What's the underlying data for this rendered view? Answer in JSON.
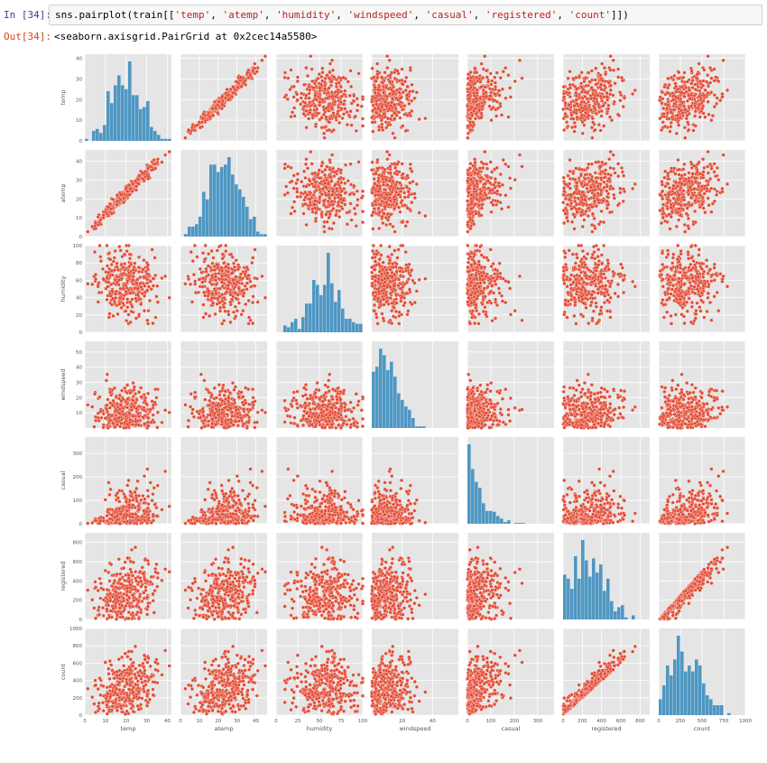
{
  "cell": {
    "in_prompt": "In [34]:",
    "out_prompt": "Out[34]:",
    "code_prefix": "sns.pairplot(train[[",
    "code_suffix": "]])",
    "output_text": "<seaborn.axisgrid.PairGrid at 0x2cec14a5580>"
  },
  "colors": {
    "scatter": "#e24a33",
    "hist": "#348abd",
    "panel_bg": "#e5e5e5",
    "grid": "#ffffff",
    "tick_text": "#555555"
  },
  "chart_data": {
    "type": "scatter",
    "style": "ggplot pairplot",
    "variables": [
      "temp",
      "atemp",
      "humidity",
      "windspeed",
      "casual",
      "registered",
      "count"
    ],
    "grid": true,
    "axes": {
      "temp": {
        "range": [
          0,
          42
        ],
        "ticks": [
          0,
          10,
          20,
          30,
          40
        ]
      },
      "atemp": {
        "range": [
          0,
          46
        ],
        "ticks": [
          0,
          10,
          20,
          30,
          40
        ]
      },
      "humidity": {
        "range": [
          0,
          100
        ],
        "ticks": [
          0,
          20,
          40,
          60,
          80,
          100
        ],
        "x_ticks": [
          0,
          25,
          50,
          75,
          100
        ]
      },
      "windspeed": {
        "range": [
          0,
          57
        ],
        "ticks": [
          10,
          20,
          30,
          40,
          50
        ],
        "x_ticks": [
          20,
          40
        ]
      },
      "casual": {
        "range": [
          0,
          370
        ],
        "ticks": [
          0,
          100,
          200,
          300
        ],
        "x_ticks": [
          0,
          100,
          200,
          300
        ]
      },
      "registered": {
        "range": [
          0,
          900
        ],
        "ticks": [
          0,
          200,
          400,
          600,
          800
        ],
        "x_ticks": [
          0,
          200,
          400,
          600,
          800
        ]
      },
      "count": {
        "range": [
          0,
          1000
        ],
        "ticks": [
          0,
          200,
          400,
          600,
          800,
          1000
        ],
        "x_ticks": [
          0,
          250,
          500,
          750,
          1000
        ]
      }
    }
  }
}
